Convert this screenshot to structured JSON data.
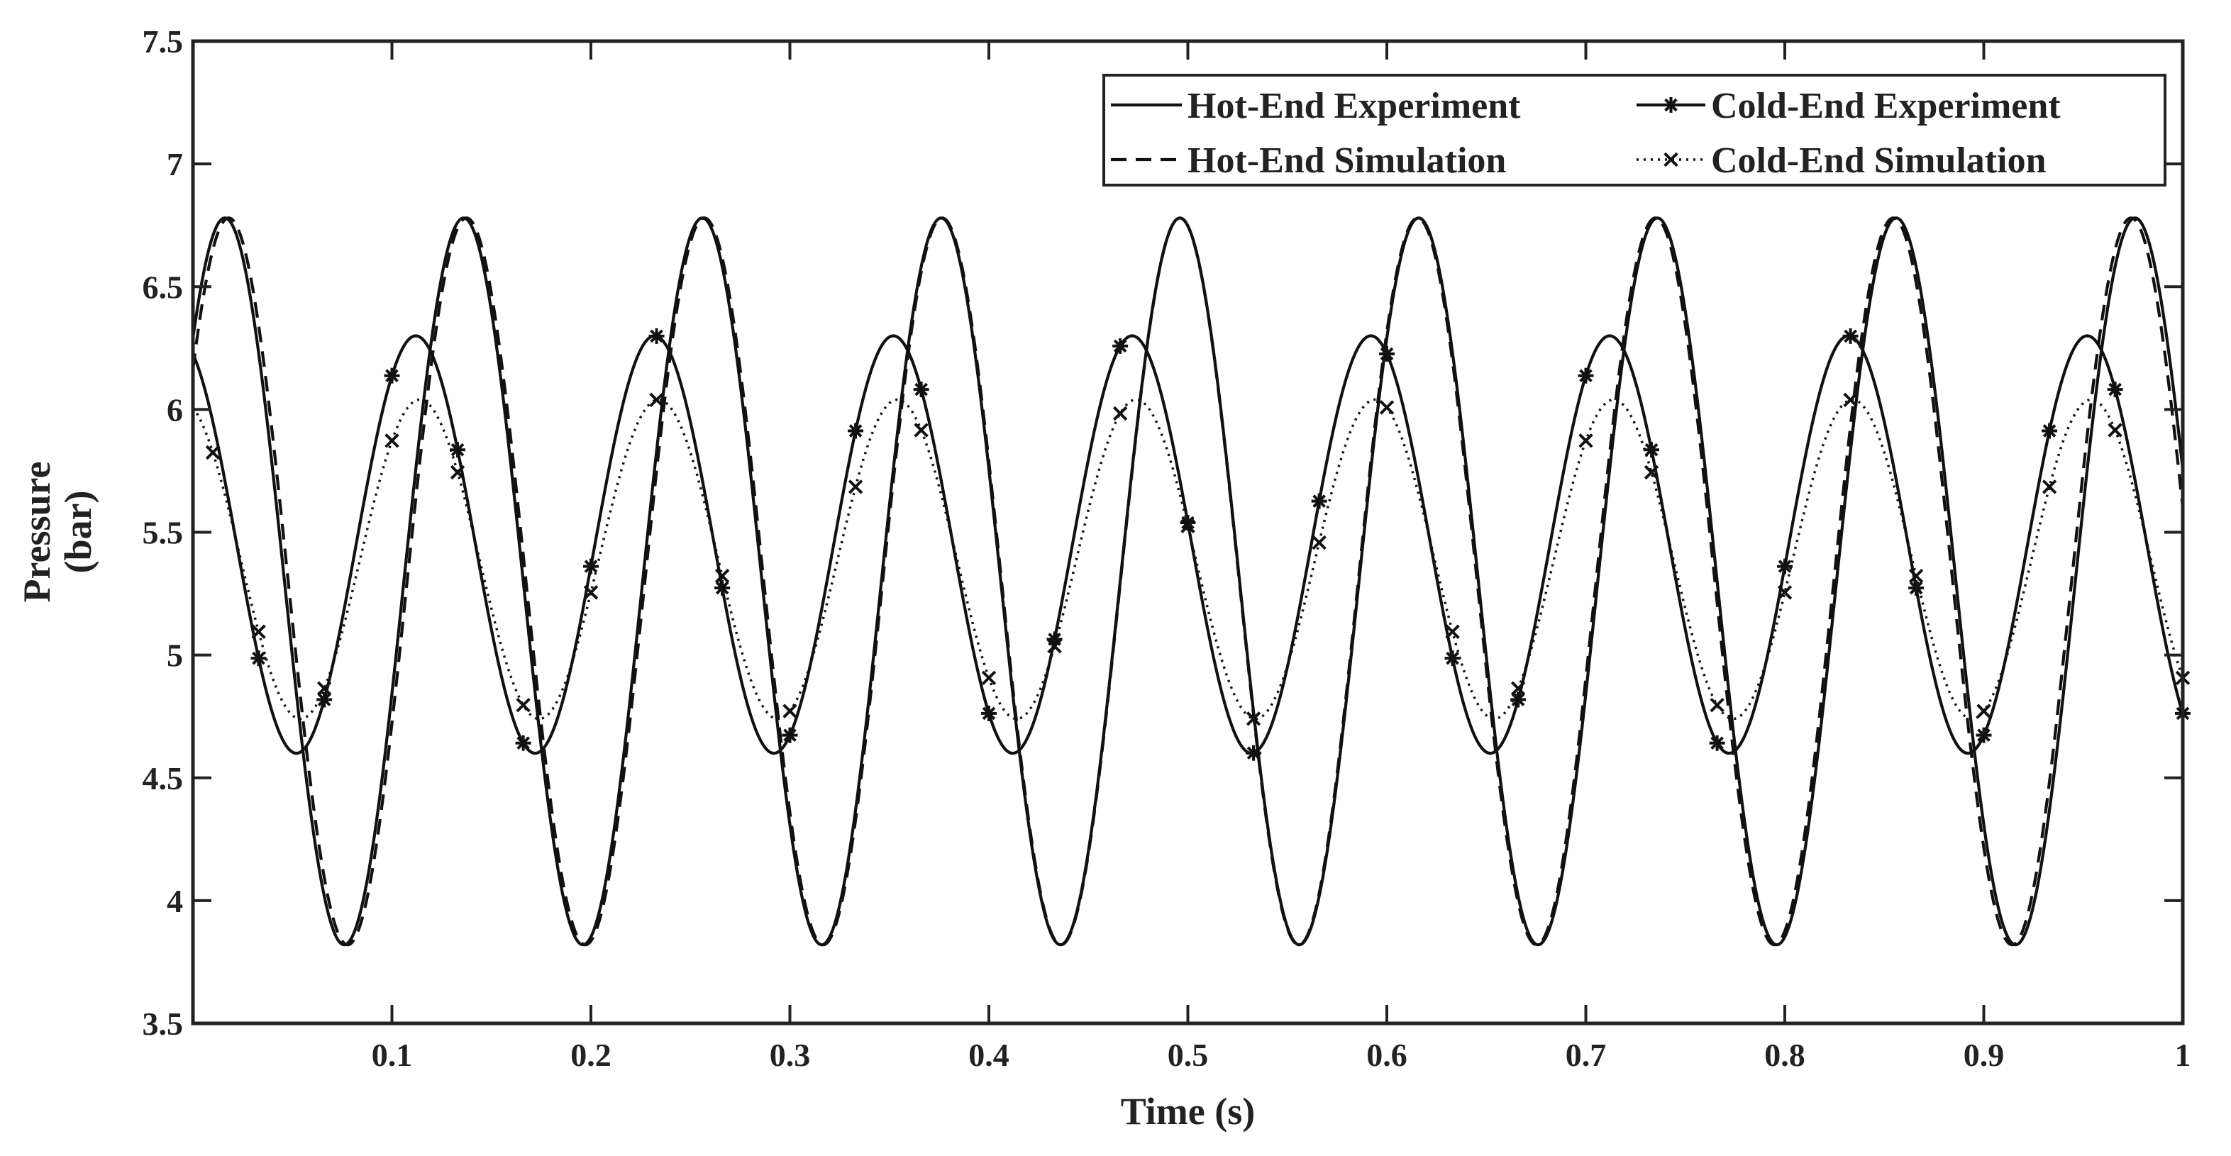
{
  "chart_data": {
    "type": "line",
    "title": "",
    "xlabel": "Time (s)",
    "ylabel_lines": [
      "Pressure",
      "(bar)"
    ],
    "xlim": [
      0,
      1
    ],
    "ylim": [
      3.5,
      7.5
    ],
    "xticks": [
      0.1,
      0.2,
      0.3,
      0.4,
      0.5,
      0.6,
      0.7,
      0.8,
      0.9,
      1
    ],
    "xtick_labels": [
      "0.1",
      "0.2",
      "0.3",
      "0.4",
      "0.5",
      "0.6",
      "0.7",
      "0.8",
      "0.9",
      "1"
    ],
    "yticks": [
      3.5,
      4,
      4.5,
      5,
      5.5,
      6,
      6.5,
      7,
      7.5
    ],
    "ytick_labels": [
      "3.5",
      "4",
      "4.5",
      "5",
      "5.5",
      "6",
      "6.5",
      "7",
      "7.5"
    ],
    "grid": false,
    "legend_position": "top-right",
    "series": [
      {
        "name": "Hot-End Experiment",
        "style": "solid",
        "marker": "none",
        "model": {
          "mean": 5.3,
          "amplitude": 1.48,
          "period": 0.12,
          "peak_time": 0.016
        }
      },
      {
        "name": "Cold-End Experiment",
        "style": "solid",
        "marker": "asterisk",
        "model": {
          "mean": 5.45,
          "amplitude": 0.85,
          "period": 0.12,
          "peak_time": 0.112
        },
        "marker_times": [
          0.033,
          0.066,
          0.1,
          0.133,
          0.166,
          0.2,
          0.233,
          0.266,
          0.3,
          0.333,
          0.366,
          0.4,
          0.433,
          0.466,
          0.5,
          0.533,
          0.566,
          0.6,
          0.633,
          0.666,
          0.7,
          0.733,
          0.766,
          0.8,
          0.833,
          0.866,
          0.9,
          0.933,
          0.966,
          1.0
        ]
      },
      {
        "name": "Hot-End Simulation",
        "style": "dashed",
        "marker": "none",
        "model": {
          "mean": 5.3,
          "amplitude": 1.48,
          "period": 0.1195,
          "peak_time": 0.1375
        }
      },
      {
        "name": "Cold-End Simulation",
        "style": "dotted",
        "marker": "x",
        "model": {
          "mean": 5.39,
          "amplitude": 0.65,
          "period": 0.12,
          "peak_time": 0.114
        },
        "marker_times": [
          0.01,
          0.033,
          0.066,
          0.1,
          0.133,
          0.166,
          0.2,
          0.233,
          0.266,
          0.3,
          0.333,
          0.366,
          0.4,
          0.433,
          0.466,
          0.5,
          0.533,
          0.566,
          0.6,
          0.633,
          0.666,
          0.7,
          0.733,
          0.766,
          0.8,
          0.833,
          0.866,
          0.9,
          0.933,
          0.966,
          1.0
        ]
      }
    ]
  }
}
